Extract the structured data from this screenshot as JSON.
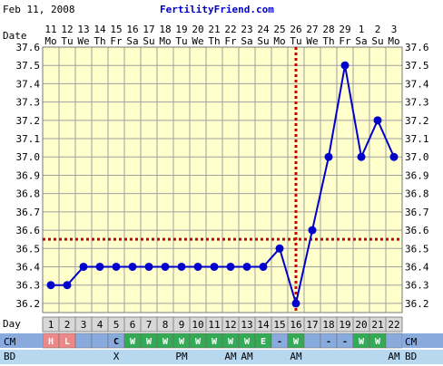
{
  "header": {
    "date_text": "Feb 11, 2008",
    "site_text": "FertilityFriend.com"
  },
  "labels": {
    "date": "Date",
    "day": "Day",
    "cm": "CM",
    "bd": "BD"
  },
  "colors": {
    "grid_bg": "#ffffcc",
    "grid_line": "#a0a0a0",
    "line": "#0000cc",
    "coverline": "#cc0000",
    "ovulation_line": "#cc0000",
    "day_row_bg": "#d8d8d8",
    "cm_blue": "#88aadd",
    "cm_green": "#33aa55",
    "cm_pink": "#ee8888",
    "bd_bg": "#b8d8f0"
  },
  "chart_data": {
    "type": "line",
    "title": "",
    "xlabel": "",
    "ylabel": "",
    "ylim": [
      36.1,
      37.6
    ],
    "ytick_step": 0.1,
    "grid": true,
    "dates": [
      "11",
      "12",
      "13",
      "14",
      "15",
      "16",
      "17",
      "18",
      "19",
      "20",
      "21",
      "22",
      "23",
      "24",
      "25",
      "26",
      "27",
      "28",
      "29",
      "1",
      "2",
      "3"
    ],
    "weekdays": [
      "Mo",
      "Tu",
      "We",
      "Th",
      "Fr",
      "Sa",
      "Su",
      "Mo",
      "Tu",
      "We",
      "Th",
      "Fr",
      "Sa",
      "Su",
      "Mo",
      "Tu",
      "We",
      "Th",
      "Fr",
      "Sa",
      "Su",
      "Mo"
    ],
    "cycle_days": [
      "1",
      "2",
      "3",
      "4",
      "5",
      "6",
      "7",
      "8",
      "9",
      "10",
      "11",
      "12",
      "13",
      "14",
      "15",
      "16",
      "17",
      "18",
      "19",
      "20",
      "21",
      "22"
    ],
    "temps": [
      36.3,
      36.3,
      36.4,
      36.4,
      36.4,
      36.4,
      36.4,
      36.4,
      36.4,
      36.4,
      36.4,
      36.4,
      36.4,
      36.4,
      36.5,
      36.2,
      36.6,
      37.0,
      37.5,
      37.0,
      37.2,
      37.0
    ],
    "coverline": 36.55,
    "ovulation_day": 16,
    "cervical_mucus": [
      "H",
      "L",
      "",
      "",
      "C",
      "W",
      "W",
      "W",
      "W",
      "W",
      "W",
      "W",
      "W",
      "E",
      "-",
      "W",
      "",
      "-",
      "-",
      "W",
      "W",
      ""
    ],
    "cm_colors": [
      "pink",
      "pink",
      "blue",
      "blue",
      "blue",
      "green",
      "green",
      "green",
      "green",
      "green",
      "green",
      "green",
      "green",
      "green",
      "blue",
      "green",
      "blue",
      "blue",
      "blue",
      "green",
      "green",
      "blue"
    ],
    "bd": [
      "",
      "",
      "",
      "",
      "X",
      "",
      "",
      "",
      "PM",
      "",
      "",
      "AM",
      "AM",
      "",
      "",
      "AM",
      "",
      "",
      "",
      "",
      "",
      "AM"
    ]
  }
}
